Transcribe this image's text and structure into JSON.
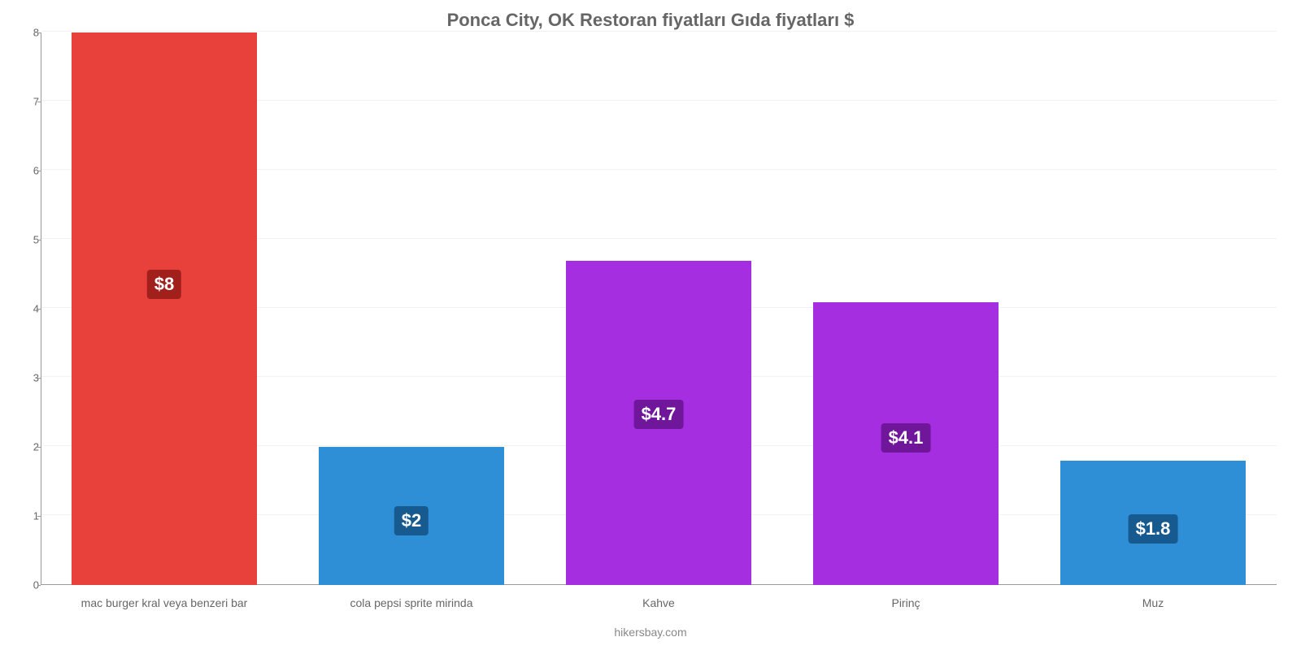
{
  "chart": {
    "type": "bar",
    "title": "Ponca City, OK Restoran fiyatları Gıda fiyatları $",
    "title_fontsize": 22,
    "title_color": "#666666",
    "footer": "hikersbay.com",
    "footer_color": "#888888",
    "background_color": "#ffffff",
    "grid_color": "rgba(0,0,0,0.05)",
    "axis_color": "#999999",
    "ylim": [
      0,
      8
    ],
    "ytick_step": 1,
    "ytick_labels": [
      "0",
      "1",
      "2",
      "3",
      "4",
      "5",
      "6",
      "7",
      "8"
    ],
    "ytick_fontsize": 13,
    "ytick_color": "#666666",
    "xlabel_fontsize": 14,
    "xlabel_color": "#666666",
    "bar_width_pct": 75,
    "value_label_fontsize": 22,
    "value_label_color": "#ffffff",
    "value_label_radius": 4,
    "categories": [
      "mac burger kral veya benzeri bar",
      "cola pepsi sprite mirinda",
      "Kahve",
      "Pirinç",
      "Muz"
    ],
    "values": [
      8,
      2,
      4.7,
      4.1,
      1.8
    ],
    "value_labels": [
      "$8",
      "$2",
      "$4.7",
      "$4.1",
      "$1.8"
    ],
    "bar_colors": [
      "#e8403a",
      "#2f8fd6",
      "#a52ee0",
      "#a52ee0",
      "#2f8fd6"
    ],
    "label_bg_colors": [
      "#a2201c",
      "#165a8f",
      "#6f169b",
      "#6f169b",
      "#165a8f"
    ]
  }
}
